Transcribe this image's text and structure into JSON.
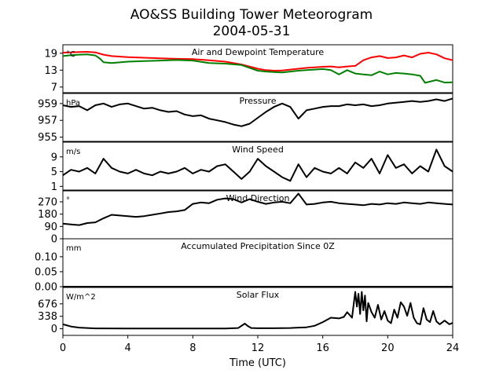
{
  "header": {
    "title_line1": "AO&SS Building Tower Meteorogram",
    "title_line2": "2004-05-31"
  },
  "chart_data": [
    {
      "type": "line",
      "title": "Air and Dewpoint Temperature",
      "unit": "°C",
      "ylim": [
        5,
        22
      ],
      "yticks": [
        7,
        13,
        19
      ],
      "series": [
        {
          "color": "#ff0000",
          "x": [
            0,
            0.5,
            1,
            1.5,
            2,
            2.5,
            3,
            4,
            5,
            6,
            7,
            8,
            9,
            10,
            11,
            12,
            12.5,
            13,
            13.5,
            14,
            14.5,
            15,
            15.5,
            16,
            16.5,
            17,
            17.5,
            18,
            18.5,
            19,
            19.5,
            20,
            20.5,
            21,
            21.5,
            22,
            22.5,
            23,
            23.5,
            24
          ],
          "values": [
            19.2,
            19.3,
            19.4,
            19.5,
            19.3,
            18.5,
            18.0,
            17.6,
            17.4,
            17.2,
            17.0,
            16.9,
            16.5,
            16.0,
            15.0,
            13.5,
            13.0,
            12.8,
            12.9,
            13.2,
            13.5,
            13.8,
            14.0,
            14.2,
            14.3,
            14.0,
            14.3,
            14.5,
            16.5,
            17.5,
            18.0,
            17.3,
            17.5,
            18.2,
            17.5,
            18.8,
            19.2,
            18.6,
            17.2,
            16.5
          ]
        },
        {
          "color": "#008000",
          "x": [
            0,
            0.5,
            1,
            1.5,
            2,
            2.3,
            2.5,
            3,
            4,
            5,
            6,
            7,
            8,
            9,
            10,
            11,
            12,
            12.5,
            13,
            13.5,
            14,
            14.5,
            15,
            15.5,
            16,
            16.5,
            17,
            17.5,
            18,
            18.5,
            19,
            19.5,
            20,
            20.5,
            21,
            21.5,
            22,
            22.3,
            22.5,
            23,
            23.5,
            24
          ],
          "values": [
            18.0,
            18.3,
            18.5,
            18.6,
            18.2,
            17.0,
            15.8,
            15.5,
            16.0,
            16.2,
            16.4,
            16.6,
            16.4,
            15.5,
            15.3,
            14.8,
            12.8,
            12.5,
            12.3,
            12.2,
            12.5,
            12.8,
            13.0,
            13.2,
            13.4,
            13.0,
            11.5,
            13.0,
            11.8,
            11.5,
            11.2,
            12.5,
            11.5,
            12.0,
            11.8,
            11.5,
            11.0,
            8.5,
            8.8,
            9.5,
            8.6,
            8.7
          ]
        }
      ]
    },
    {
      "type": "line",
      "title": "Pressure",
      "unit": "hPa",
      "ylim": [
        954.5,
        960.2
      ],
      "yticks": [
        955,
        957,
        959
      ],
      "series": [
        {
          "color": "#000000",
          "x": [
            0,
            0.5,
            1,
            1.5,
            2,
            2.5,
            3,
            3.5,
            4,
            4.5,
            5,
            5.5,
            6,
            6.5,
            7,
            7.5,
            8,
            8.5,
            9,
            9.5,
            10,
            10.5,
            11,
            11.5,
            12,
            12.5,
            13,
            13.5,
            14,
            14.5,
            15,
            15.5,
            16,
            16.5,
            17,
            17.5,
            18,
            18.5,
            19,
            19.5,
            20,
            20.5,
            21,
            21.5,
            22,
            22.5,
            23,
            23.5,
            24
          ],
          "values": [
            958.8,
            958.6,
            958.7,
            958.2,
            958.8,
            959.0,
            958.6,
            958.9,
            959.0,
            958.7,
            958.4,
            958.5,
            958.2,
            958.0,
            958.1,
            957.7,
            957.5,
            957.6,
            957.2,
            957.0,
            956.8,
            956.5,
            956.3,
            956.6,
            957.3,
            958.0,
            958.6,
            959.0,
            958.6,
            957.2,
            958.2,
            958.4,
            958.6,
            958.7,
            958.7,
            958.9,
            958.8,
            958.9,
            958.7,
            958.8,
            959.0,
            959.1,
            959.2,
            959.3,
            959.2,
            959.3,
            959.5,
            959.3,
            959.6
          ]
        }
      ]
    },
    {
      "type": "line",
      "title": "Wind Speed",
      "unit": "m/s",
      "ylim": [
        0,
        13
      ],
      "yticks": [
        1,
        5,
        9
      ],
      "series": [
        {
          "color": "#000000",
          "x": [
            0,
            0.5,
            1,
            1.5,
            2,
            2.5,
            3,
            3.5,
            4,
            4.5,
            5,
            5.5,
            6,
            6.5,
            7,
            7.5,
            8,
            8.5,
            9,
            9.5,
            10,
            10.5,
            11,
            11.5,
            12,
            12.5,
            13,
            13.5,
            14,
            14.5,
            15,
            15.5,
            16,
            16.5,
            17,
            17.5,
            18,
            18.5,
            19,
            19.5,
            20,
            20.5,
            21,
            21.5,
            22,
            22.5,
            23,
            23.5,
            24
          ],
          "values": [
            4.0,
            5.5,
            5.0,
            6.0,
            4.5,
            8.5,
            6.0,
            5.0,
            4.5,
            5.5,
            4.5,
            4.0,
            5.0,
            4.5,
            5.0,
            6.0,
            4.5,
            5.5,
            5.0,
            6.5,
            7.0,
            5.0,
            3.0,
            5.0,
            8.5,
            6.5,
            5.0,
            3.5,
            2.5,
            7.0,
            3.5,
            6.0,
            5.0,
            4.5,
            6.0,
            4.5,
            7.5,
            6.0,
            8.5,
            4.5,
            9.5,
            6.0,
            7.0,
            4.5,
            6.5,
            5.0,
            11.0,
            6.5,
            5.0
          ]
        }
      ]
    },
    {
      "type": "line",
      "title": "Wind Direction",
      "unit": "°",
      "ylim": [
        0,
        350
      ],
      "yticks": [
        0,
        90,
        180,
        270
      ],
      "series": [
        {
          "color": "#000000",
          "x": [
            0,
            0.5,
            1,
            1.5,
            2,
            2.5,
            3,
            3.5,
            4,
            4.5,
            5,
            5.5,
            6,
            6.5,
            7,
            7.5,
            8,
            8.5,
            9,
            9.5,
            10,
            10.5,
            11,
            11.5,
            12,
            12.5,
            13,
            13.5,
            14,
            14.5,
            15,
            15.5,
            16,
            16.5,
            17,
            17.5,
            18,
            18.5,
            19,
            19.5,
            20,
            20.5,
            21,
            21.5,
            22,
            22.5,
            23,
            23.5,
            24
          ],
          "values": [
            110,
            105,
            100,
            115,
            120,
            150,
            175,
            170,
            165,
            160,
            165,
            175,
            185,
            195,
            200,
            210,
            255,
            265,
            260,
            285,
            295,
            290,
            265,
            290,
            270,
            255,
            265,
            270,
            260,
            330,
            250,
            255,
            265,
            270,
            260,
            255,
            250,
            245,
            255,
            250,
            260,
            255,
            265,
            260,
            255,
            265,
            260,
            255,
            250
          ]
        }
      ]
    },
    {
      "type": "line",
      "title": "Accumulated Precipitation Since 0Z",
      "unit": "mm",
      "ylim": [
        0,
        0.16
      ],
      "yticks": [
        0.0,
        0.05,
        0.1
      ],
      "ytick_labels": [
        "0.00",
        "0.05",
        "0.10"
      ],
      "series": [
        {
          "color": "#000000",
          "x": [
            0,
            24
          ],
          "values": [
            0,
            0
          ]
        }
      ]
    },
    {
      "type": "line",
      "title": "Solar Flux",
      "unit": "W/m^2",
      "ylim": [
        -180,
        1120
      ],
      "yticks": [
        0,
        338,
        676
      ],
      "series": [
        {
          "color": "#000000",
          "x": [
            0,
            0.5,
            1,
            2,
            4,
            6,
            8,
            10,
            10.8,
            11.2,
            11.4,
            11.6,
            12,
            13,
            14,
            15,
            15.5,
            16,
            16.5,
            17,
            17.3,
            17.5,
            17.8,
            18,
            18.1,
            18.2,
            18.3,
            18.4,
            18.5,
            18.6,
            18.7,
            18.8,
            19,
            19.2,
            19.4,
            19.6,
            19.8,
            20,
            20.2,
            20.4,
            20.6,
            20.8,
            21,
            21.2,
            21.4,
            21.6,
            21.8,
            22,
            22.2,
            22.4,
            22.6,
            22.8,
            23,
            23.2,
            23.5,
            23.8,
            24
          ],
          "values": [
            120,
            60,
            30,
            10,
            5,
            5,
            5,
            5,
            20,
            140,
            70,
            20,
            15,
            15,
            20,
            40,
            80,
            180,
            300,
            280,
            320,
            450,
            300,
            1000,
            600,
            950,
            400,
            1000,
            500,
            900,
            200,
            700,
            450,
            300,
            650,
            250,
            480,
            220,
            150,
            520,
            300,
            720,
            600,
            350,
            700,
            300,
            150,
            120,
            560,
            250,
            180,
            480,
            200,
            120,
            220,
            120,
            160
          ]
        }
      ]
    }
  ],
  "x_axis": {
    "label": "Time (UTC)",
    "ticks": [
      0,
      4,
      8,
      12,
      16,
      20,
      24
    ],
    "xlim": [
      0,
      24
    ]
  }
}
